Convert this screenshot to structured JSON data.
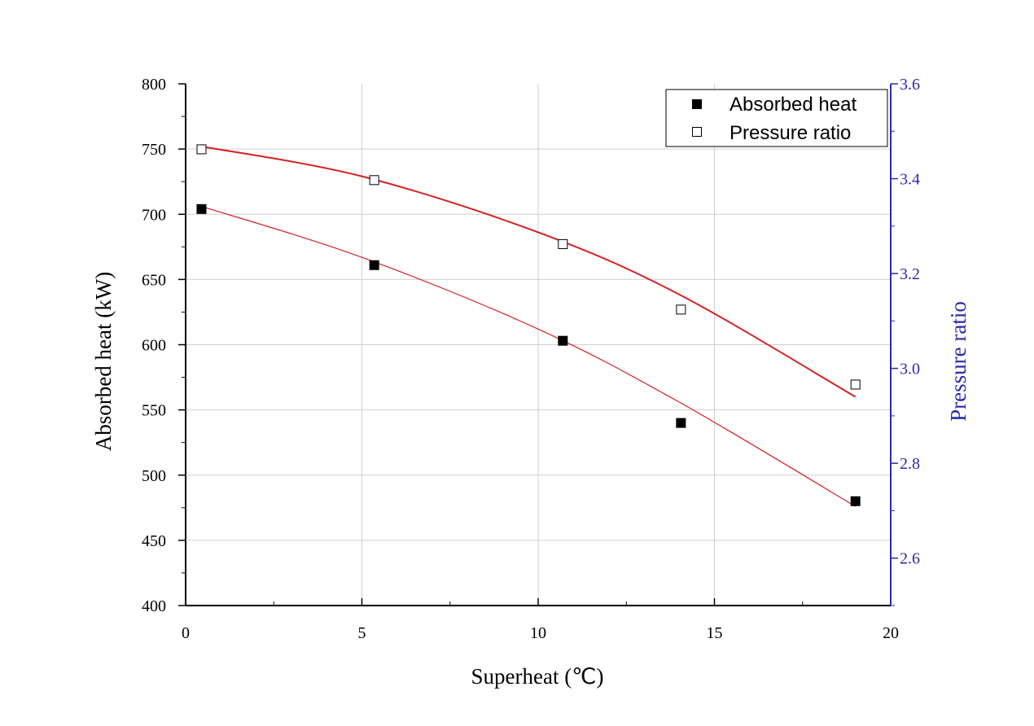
{
  "chart_data": {
    "type": "scatter",
    "title": "",
    "xlabel": "Superheat (℃)",
    "ylabel": "Absorbed heat (kW)",
    "y2label": "Pressure ratio",
    "xlim": [
      0,
      20
    ],
    "ylim": [
      400,
      800
    ],
    "y2lim": [
      2.5,
      3.6
    ],
    "xticks": [
      "0",
      "5",
      "10",
      "15",
      "20"
    ],
    "yticks": [
      "400",
      "450",
      "500",
      "550",
      "600",
      "650",
      "700",
      "750",
      "800"
    ],
    "y2ticks": [
      "2.6",
      "2.8",
      "3.0",
      "3.2",
      "3.4",
      "3.6"
    ],
    "grid": true,
    "legend_position": "top-right",
    "series": [
      {
        "name": "Absorbed heat",
        "axis": "left",
        "marker": "filled-square",
        "x": [
          0.45,
          5.35,
          10.7,
          14.05,
          19.0
        ],
        "y": [
          704,
          661,
          603,
          540,
          480
        ],
        "fit_line": [
          [
            0.45,
            706
          ],
          [
            5.0,
            667
          ],
          [
            10.0,
            612
          ],
          [
            14.0,
            556
          ],
          [
            19.0,
            476
          ]
        ]
      },
      {
        "name": "Pressure ratio",
        "axis": "right",
        "marker": "open-square",
        "x": [
          0.45,
          5.35,
          10.7,
          14.05,
          19.0
        ],
        "y": [
          3.462,
          3.397,
          3.262,
          3.124,
          2.966
        ],
        "fit_line": [
          [
            0.45,
            3.468
          ],
          [
            5.0,
            3.405
          ],
          [
            10.0,
            3.287
          ],
          [
            14.0,
            3.156
          ],
          [
            19.0,
            2.94
          ]
        ]
      }
    ],
    "colors": {
      "fit": "#d62020",
      "right_axis": "#2a2ab0",
      "grid": "#d0d0d0"
    }
  }
}
